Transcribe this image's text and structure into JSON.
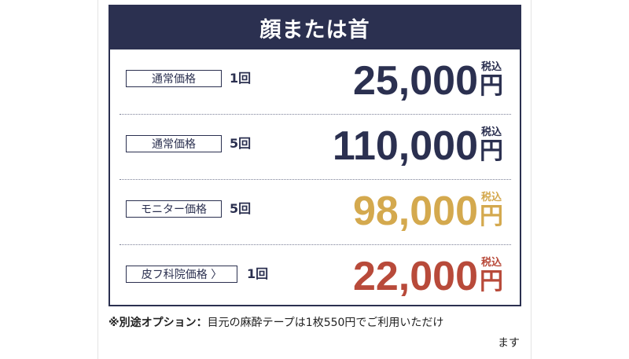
{
  "card": {
    "title": "顔または首"
  },
  "rows": [
    {
      "tag": "通常価格",
      "count": "1回",
      "price": "25,000",
      "tax": "税込",
      "yen": "円",
      "color": "#2b3050"
    },
    {
      "tag": "通常価格",
      "count": "5回",
      "price": "110,000",
      "tax": "税込",
      "yen": "円",
      "color": "#2b3050"
    },
    {
      "tag": "モニター価格",
      "count": "5回",
      "price": "98,000",
      "tax": "税込",
      "yen": "円",
      "color": "#d4a94e"
    },
    {
      "tag": "皮フ科院価格 〉",
      "count": "1回",
      "price": "22,000",
      "tax": "税込",
      "yen": "円",
      "color": "#b84a3a"
    }
  ],
  "note": {
    "lead": "※別途オプション：",
    "line1": "目元の麻酔テープは1枚550円でご利用いただけ",
    "line2": "ます"
  },
  "colors": {
    "navy": "#2b3050",
    "gold": "#d4a94e",
    "red": "#b84a3a"
  }
}
